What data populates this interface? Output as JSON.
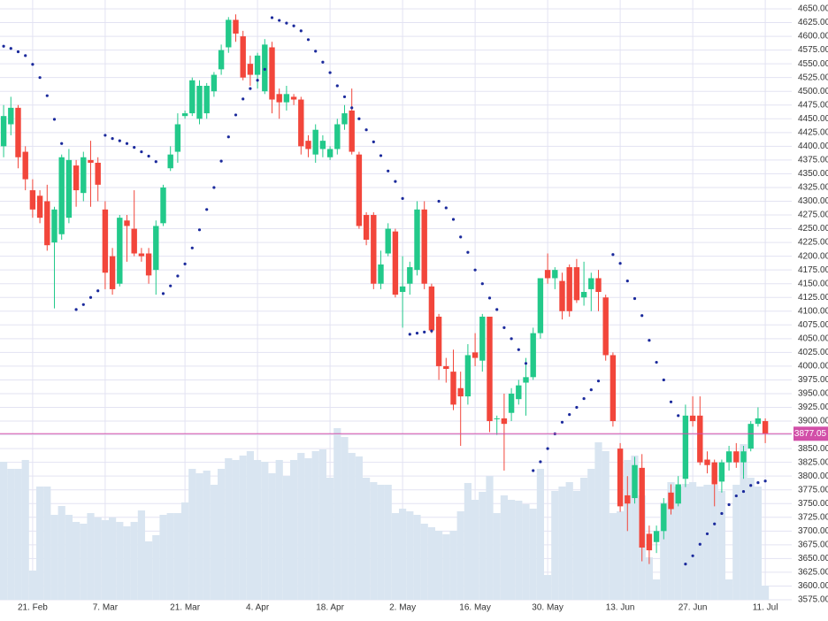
{
  "chart_data": {
    "type": "candlestick",
    "categories": [
      null,
      null,
      null,
      null,
      "21. Feb",
      null,
      null,
      null,
      null,
      null,
      null,
      null,
      null,
      null,
      "7. Mar",
      null,
      null,
      null,
      null,
      null,
      null,
      null,
      null,
      null,
      null,
      "21. Mar",
      null,
      null,
      null,
      null,
      null,
      null,
      null,
      null,
      null,
      "4. Apr",
      null,
      null,
      null,
      null,
      null,
      null,
      null,
      null,
      null,
      "18. Apr",
      null,
      null,
      null,
      null,
      null,
      null,
      null,
      null,
      null,
      "2. May",
      null,
      null,
      null,
      null,
      null,
      null,
      null,
      null,
      null,
      "16. May",
      null,
      null,
      null,
      null,
      null,
      null,
      null,
      null,
      null,
      "30. May",
      null,
      null,
      null,
      null,
      null,
      null,
      null,
      null,
      null,
      "13. Jun",
      null,
      null,
      null,
      null,
      null,
      null,
      null,
      null,
      null,
      "27. Jun",
      null,
      null,
      null,
      null,
      null,
      null,
      null,
      null,
      null,
      "11. Jul"
    ],
    "open": [
      4400,
      4440,
      4470,
      4390,
      4320,
      4310,
      4300,
      4225,
      4240,
      4270,
      4365,
      4315,
      4375,
      4370,
      4285,
      4200,
      4150,
      4265,
      4250,
      4205,
      4205,
      4175,
      4260,
      4360,
      4390,
      4455,
      4460,
      4450,
      4460,
      4500,
      4540,
      4580,
      4630,
      4600,
      4550,
      4530,
      4500,
      4580,
      4495,
      4480,
      4490,
      4485,
      4410,
      4385,
      4395,
      4380,
      4395,
      4440,
      4465,
      4385,
      4275,
      4275,
      4150,
      4205,
      4245,
      4135,
      4150,
      4175,
      4285,
      4145,
      4090,
      4000,
      3990,
      3960,
      3945,
      4025,
      4010,
      4090,
      3905,
      3905,
      3915,
      3940,
      3970,
      3980,
      4060,
      4175,
      4160,
      4155,
      4180,
      4180,
      4125,
      4140,
      4160,
      4125,
      4020,
      3850,
      3765,
      3760,
      3815,
      3695,
      3680,
      3700,
      3770,
      3750,
      3795,
      3910,
      3910,
      3830,
      3825,
      3790,
      3825,
      3845,
      3825,
      3850,
      3895,
      3900
    ],
    "high": [
      4475,
      4490,
      4475,
      4400,
      4340,
      4320,
      4330,
      4290,
      4385,
      4395,
      4375,
      4390,
      4410,
      4380,
      4300,
      4215,
      4275,
      4275,
      4320,
      4215,
      4215,
      4265,
      4330,
      4400,
      4460,
      4465,
      4525,
      4520,
      4515,
      4535,
      4585,
      4635,
      4640,
      4610,
      4565,
      4570,
      4595,
      4590,
      4505,
      4510,
      4495,
      4490,
      4420,
      4440,
      4420,
      4400,
      4450,
      4475,
      4505,
      4390,
      4280,
      4280,
      4210,
      4260,
      4250,
      4200,
      4190,
      4300,
      4300,
      4150,
      4095,
      4015,
      4030,
      3990,
      4040,
      4060,
      4095,
      4090,
      3910,
      3950,
      3960,
      3975,
      4015,
      4070,
      4160,
      4205,
      4180,
      4170,
      4185,
      4195,
      4190,
      4170,
      4175,
      4130,
      4025,
      3860,
      3800,
      3835,
      3840,
      3710,
      3710,
      3760,
      3785,
      3800,
      3930,
      3945,
      3945,
      3845,
      3830,
      3830,
      3855,
      3860,
      3855,
      3900,
      3925,
      3905
    ],
    "low": [
      4380,
      4420,
      4360,
      4320,
      4270,
      4260,
      4210,
      4105,
      4230,
      4260,
      4290,
      4300,
      4290,
      4300,
      4140,
      4130,
      4145,
      4190,
      4200,
      4190,
      4150,
      4130,
      4255,
      4355,
      4370,
      4450,
      4455,
      4440,
      4450,
      4490,
      4530,
      4570,
      4590,
      4520,
      4510,
      4505,
      4495,
      4460,
      4450,
      4465,
      4475,
      4385,
      4380,
      4370,
      4380,
      4375,
      4385,
      4430,
      4385,
      4250,
      4220,
      4140,
      4140,
      4200,
      4125,
      4070,
      4130,
      4165,
      4140,
      4060,
      3975,
      3970,
      3920,
      3855,
      3930,
      4000,
      3990,
      3880,
      3875,
      3810,
      3900,
      3930,
      3910,
      3975,
      4050,
      4150,
      4140,
      4085,
      4090,
      4115,
      4110,
      4100,
      4100,
      4010,
      3890,
      3735,
      3700,
      3750,
      3645,
      3640,
      3660,
      3685,
      3730,
      3745,
      3780,
      3890,
      3820,
      3805,
      3745,
      3770,
      3810,
      3815,
      3795,
      3845,
      3890,
      3860
    ],
    "close": [
      4455,
      4470,
      4380,
      4340,
      4285,
      4270,
      4220,
      4285,
      4380,
      4375,
      4320,
      4380,
      4370,
      4330,
      4170,
      4140,
      4270,
      4255,
      4205,
      4200,
      4165,
      4255,
      4325,
      4385,
      4440,
      4460,
      4520,
      4510,
      4510,
      4530,
      4575,
      4630,
      4605,
      4525,
      4530,
      4565,
      4585,
      4485,
      4480,
      4495,
      4485,
      4400,
      4395,
      4430,
      4410,
      4395,
      4440,
      4460,
      4390,
      4255,
      4230,
      4150,
      4185,
      4250,
      4130,
      4145,
      4180,
      4285,
      4150,
      4065,
      4000,
      3995,
      3930,
      3945,
      4020,
      4015,
      4090,
      3900,
      3905,
      3895,
      3950,
      3965,
      3980,
      4060,
      4160,
      4160,
      4175,
      4100,
      4100,
      4120,
      4135,
      4160,
      4135,
      4020,
      3900,
      3745,
      3750,
      3820,
      3670,
      3665,
      3700,
      3750,
      3740,
      3785,
      3910,
      3900,
      3825,
      3820,
      3785,
      3825,
      3845,
      3825,
      3845,
      3895,
      3905,
      3877.05
    ],
    "volume": [
      156,
      148,
      148,
      158,
      33,
      128,
      128,
      96,
      106,
      96,
      88,
      86,
      98,
      93,
      90,
      93,
      88,
      83,
      88,
      101,
      66,
      73,
      96,
      98,
      98,
      110,
      148,
      143,
      146,
      130,
      148,
      160,
      158,
      163,
      168,
      158,
      156,
      143,
      158,
      140,
      158,
      166,
      160,
      168,
      170,
      138,
      194,
      184,
      166,
      162,
      138,
      133,
      130,
      130,
      98,
      103,
      100,
      96,
      86,
      82,
      78,
      74,
      78,
      100,
      132,
      113,
      122,
      140,
      98,
      118,
      113,
      112,
      108,
      103,
      148,
      28,
      123,
      128,
      133,
      123,
      138,
      148,
      178,
      168,
      98,
      100,
      158,
      163,
      118,
      48,
      23,
      110,
      133,
      128,
      131,
      133,
      128,
      130,
      130,
      123,
      23,
      130,
      176,
      138,
      128,
      16
    ],
    "volume_lim": [
      0,
      200
    ],
    "sar": [
      4582,
      4578,
      4572,
      4565,
      4549,
      4525,
      4492,
      4449,
      4405,
      null,
      4103,
      4112,
      4125,
      4137,
      4420,
      4414,
      4410,
      4405,
      4398,
      4390,
      4382,
      4372,
      4132,
      4146,
      4164,
      4186,
      4215,
      4248,
      4285,
      4325,
      4373,
      4417,
      4457,
      4486,
      4505,
      4520,
      4540,
      4634,
      4629,
      4624,
      4619,
      4610,
      4594,
      4573,
      4553,
      4534,
      4510,
      4490,
      4470,
      4450,
      4430,
      4408,
      4383,
      4355,
      4336,
      4305,
      4058,
      4060,
      4062,
      4064,
      4300,
      4288,
      4267,
      4235,
      4207,
      4175,
      4150,
      4124,
      4103,
      4070,
      4050,
      4030,
      4005,
      3810,
      3826,
      3850,
      3877,
      3898,
      3912,
      3925,
      3941,
      3957,
      3973,
      null,
      4203,
      4187,
      4155,
      4123,
      4092,
      4047,
      4007,
      3975,
      3935,
      3910,
      3640,
      3655,
      3676,
      3695,
      3713,
      3732,
      3748,
      3764,
      3772,
      3783,
      3788,
      3791
    ],
    "last_price": 3877.05,
    "up_color": "#22c98a",
    "down_color": "#f2463b",
    "volume_color": "#d9e5f1",
    "sar_color": "#1b2a9c",
    "last_price_color": "#d24fa8",
    "ylim": [
      3575,
      4650
    ],
    "yticks": [
      {
        "value": 3575,
        "label": "3575.00"
      },
      {
        "value": 3600,
        "label": "3600.00"
      },
      {
        "value": 3625,
        "label": "3625.00"
      },
      {
        "value": 3650,
        "label": "3650.00"
      },
      {
        "value": 3675,
        "label": "3675.00"
      },
      {
        "value": 3700,
        "label": "3700.00"
      },
      {
        "value": 3725,
        "label": "3725.00"
      },
      {
        "value": 3750,
        "label": "3750.00"
      },
      {
        "value": 3775,
        "label": "3775.00"
      },
      {
        "value": 3800,
        "label": "3800.00"
      },
      {
        "value": 3825,
        "label": "3825.00"
      },
      {
        "value": 3850,
        "label": "3850.00"
      },
      {
        "value": 3875,
        "label": "3875.00"
      },
      {
        "value": 3900,
        "label": "3900.00"
      },
      {
        "value": 3925,
        "label": "3925.00"
      },
      {
        "value": 3950,
        "label": "3950.00"
      },
      {
        "value": 3975,
        "label": "3975.00"
      },
      {
        "value": 4000,
        "label": "4000.00"
      },
      {
        "value": 4025,
        "label": "4025.00"
      },
      {
        "value": 4050,
        "label": "4050.00"
      },
      {
        "value": 4075,
        "label": "4075.00"
      },
      {
        "value": 4100,
        "label": "4100.00"
      },
      {
        "value": 4125,
        "label": "4125.00"
      },
      {
        "value": 4150,
        "label": "4150.00"
      },
      {
        "value": 4175,
        "label": "4175.00"
      },
      {
        "value": 4200,
        "label": "4200.00"
      },
      {
        "value": 4225,
        "label": "4225.00"
      },
      {
        "value": 4250,
        "label": "4250.00"
      },
      {
        "value": 4275,
        "label": "4275.00"
      },
      {
        "value": 4300,
        "label": "4300.00"
      },
      {
        "value": 4325,
        "label": "4325.00"
      },
      {
        "value": 4350,
        "label": "4350.00"
      },
      {
        "value": 4375,
        "label": "4375.00"
      },
      {
        "value": 4400,
        "label": "4400.00"
      },
      {
        "value": 4425,
        "label": "4425.00"
      },
      {
        "value": 4450,
        "label": "4450.00"
      },
      {
        "value": 4475,
        "label": "4475.00"
      },
      {
        "value": 4500,
        "label": "4500.00"
      },
      {
        "value": 4525,
        "label": "4525.00"
      },
      {
        "value": 4550,
        "label": "4550.00"
      },
      {
        "value": 4575,
        "label": "4575.00"
      },
      {
        "value": 4600,
        "label": "4600.00"
      },
      {
        "value": 4625,
        "label": "4625.00"
      },
      {
        "value": 4650,
        "label": "4650.00"
      }
    ],
    "grid": true
  }
}
